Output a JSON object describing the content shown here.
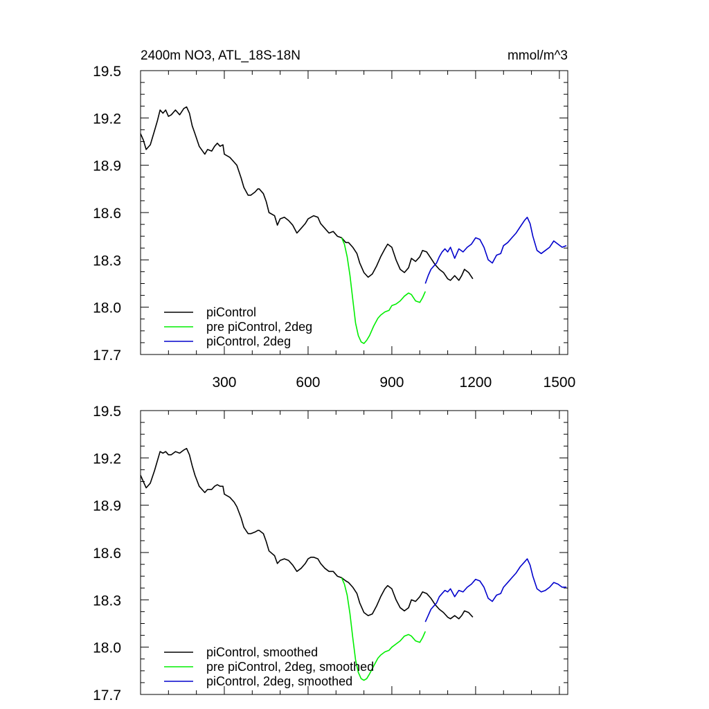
{
  "chart_data": [
    {
      "type": "line",
      "title_left": "2400m NO3, ATL_18S-18N",
      "title_right": "mmol/m^3",
      "xlabel": "",
      "ylabel": "",
      "xlim": [
        0,
        1530
      ],
      "ylim": [
        17.7,
        19.5
      ],
      "xticks": [
        300,
        600,
        900,
        1200,
        1500
      ],
      "xtick_labels": [
        "300",
        "600",
        "900",
        "1200",
        "1500"
      ],
      "yticks": [
        17.7,
        18.0,
        18.3,
        18.6,
        18.9,
        19.2,
        19.5
      ],
      "ytick_labels": [
        "17.7",
        "18.0",
        "18.3",
        "18.6",
        "18.9",
        "19.2",
        "19.5"
      ],
      "legend_position": "bottom-left",
      "series": [
        {
          "name": "piControl",
          "color": "#000000",
          "x": [
            0,
            10,
            20,
            35,
            50,
            60,
            70,
            80,
            90,
            100,
            110,
            125,
            140,
            155,
            165,
            175,
            185,
            195,
            210,
            230,
            240,
            255,
            265,
            275,
            285,
            295,
            300,
            320,
            335,
            345,
            360,
            370,
            385,
            395,
            410,
            420,
            425,
            440,
            450,
            460,
            480,
            490,
            500,
            515,
            530,
            545,
            560,
            575,
            590,
            600,
            610,
            620,
            635,
            645,
            660,
            675,
            690,
            705,
            720,
            735,
            745,
            760,
            775,
            785,
            800,
            815,
            830,
            845,
            860,
            875,
            885,
            900,
            915,
            930,
            945,
            960,
            970,
            985,
            1000,
            1010,
            1025,
            1040,
            1055,
            1070,
            1085,
            1100,
            1110,
            1125,
            1140,
            1150,
            1160,
            1175,
            1190
          ],
          "values": [
            19.1,
            19.06,
            19.0,
            19.03,
            19.12,
            19.18,
            19.25,
            19.23,
            19.25,
            19.21,
            19.22,
            19.25,
            19.22,
            19.26,
            19.27,
            19.23,
            19.15,
            19.1,
            19.02,
            18.97,
            19.0,
            18.99,
            19.02,
            19.04,
            19.02,
            19.03,
            18.97,
            18.95,
            18.92,
            18.9,
            18.82,
            18.76,
            18.71,
            18.71,
            18.73,
            18.75,
            18.75,
            18.72,
            18.67,
            18.6,
            18.58,
            18.52,
            18.56,
            18.57,
            18.55,
            18.52,
            18.47,
            18.5,
            18.53,
            18.56,
            18.57,
            18.58,
            18.57,
            18.53,
            18.5,
            18.47,
            18.48,
            18.45,
            18.44,
            18.41,
            18.41,
            18.38,
            18.34,
            18.28,
            18.22,
            18.19,
            18.21,
            18.26,
            18.32,
            18.37,
            18.4,
            18.38,
            18.3,
            18.24,
            18.22,
            18.25,
            18.31,
            18.29,
            18.32,
            18.36,
            18.35,
            18.31,
            18.27,
            18.24,
            18.22,
            18.18,
            18.17,
            18.2,
            18.17,
            18.2,
            18.24,
            18.22,
            18.18
          ]
        },
        {
          "name": "pre piControl, 2deg",
          "color": "#00ee00",
          "x": [
            720,
            730,
            740,
            750,
            760,
            770,
            780,
            790,
            800,
            810,
            820,
            835,
            850,
            860,
            875,
            890,
            900,
            915,
            930,
            945,
            960,
            970,
            985,
            1000,
            1010,
            1020
          ],
          "values": [
            18.44,
            18.4,
            18.32,
            18.2,
            18.05,
            17.9,
            17.82,
            17.78,
            17.77,
            17.79,
            17.82,
            17.88,
            17.93,
            17.95,
            17.97,
            17.98,
            18.01,
            18.02,
            18.04,
            18.07,
            18.09,
            18.08,
            18.04,
            18.03,
            18.06,
            18.1
          ]
        },
        {
          "name": "piControl, 2deg",
          "color": "#0000cc",
          "x": [
            1020,
            1030,
            1040,
            1050,
            1060,
            1070,
            1080,
            1090,
            1100,
            1110,
            1125,
            1140,
            1155,
            1170,
            1185,
            1200,
            1215,
            1230,
            1245,
            1260,
            1275,
            1290,
            1300,
            1315,
            1330,
            1345,
            1360,
            1375,
            1385,
            1395,
            1405,
            1420,
            1435,
            1450,
            1465,
            1480,
            1495,
            1510,
            1525
          ],
          "values": [
            18.15,
            18.2,
            18.24,
            18.26,
            18.28,
            18.32,
            18.35,
            18.37,
            18.35,
            18.38,
            18.31,
            18.37,
            18.35,
            18.38,
            18.4,
            18.44,
            18.43,
            18.38,
            18.3,
            18.28,
            18.33,
            18.34,
            18.39,
            18.41,
            18.44,
            18.47,
            18.51,
            18.55,
            18.57,
            18.53,
            18.45,
            18.36,
            18.34,
            18.36,
            18.38,
            18.42,
            18.4,
            18.38,
            18.39
          ]
        }
      ]
    },
    {
      "type": "line",
      "title_left": "",
      "title_right": "",
      "xlabel": "",
      "ylabel": "",
      "xlim": [
        0,
        1530
      ],
      "ylim": [
        17.7,
        19.5
      ],
      "xticks": [
        300,
        600,
        900,
        1200,
        1500
      ],
      "xtick_labels": [],
      "yticks": [
        17.7,
        18.0,
        18.3,
        18.6,
        18.9,
        19.2,
        19.5
      ],
      "ytick_labels": [
        "17.7",
        "18.0",
        "18.3",
        "18.6",
        "18.9",
        "19.2",
        "19.5"
      ],
      "legend_position": "bottom-left",
      "series": [
        {
          "name": "piControl, smoothed",
          "color": "#000000",
          "x": [
            0,
            10,
            20,
            35,
            50,
            60,
            70,
            80,
            90,
            100,
            110,
            125,
            140,
            155,
            165,
            175,
            185,
            195,
            210,
            230,
            240,
            255,
            265,
            275,
            285,
            295,
            300,
            320,
            335,
            345,
            360,
            370,
            385,
            395,
            410,
            420,
            425,
            440,
            450,
            460,
            480,
            490,
            500,
            515,
            530,
            545,
            560,
            575,
            590,
            600,
            610,
            620,
            635,
            645,
            660,
            675,
            690,
            705,
            720,
            735,
            745,
            760,
            775,
            785,
            800,
            815,
            830,
            845,
            860,
            875,
            885,
            900,
            915,
            930,
            945,
            960,
            970,
            985,
            1000,
            1010,
            1025,
            1040,
            1055,
            1070,
            1085,
            1100,
            1110,
            1125,
            1140,
            1150,
            1160,
            1175,
            1190
          ],
          "values": [
            19.09,
            19.05,
            19.01,
            19.04,
            19.12,
            19.18,
            19.24,
            19.23,
            19.24,
            19.22,
            19.22,
            19.24,
            19.23,
            19.25,
            19.26,
            19.22,
            19.15,
            19.09,
            19.02,
            18.98,
            19.0,
            19.0,
            19.02,
            19.03,
            19.02,
            19.02,
            18.97,
            18.95,
            18.92,
            18.89,
            18.82,
            18.76,
            18.72,
            18.72,
            18.73,
            18.74,
            18.74,
            18.72,
            18.67,
            18.61,
            18.58,
            18.53,
            18.55,
            18.56,
            18.55,
            18.52,
            18.48,
            18.5,
            18.53,
            18.56,
            18.57,
            18.57,
            18.56,
            18.53,
            18.5,
            18.48,
            18.48,
            18.45,
            18.44,
            18.42,
            18.41,
            18.38,
            18.34,
            18.28,
            18.22,
            18.2,
            18.21,
            18.26,
            18.32,
            18.37,
            18.39,
            18.37,
            18.3,
            18.25,
            18.23,
            18.25,
            18.3,
            18.29,
            18.32,
            18.35,
            18.34,
            18.31,
            18.27,
            18.24,
            18.22,
            18.19,
            18.18,
            18.2,
            18.18,
            18.2,
            18.23,
            18.22,
            18.19
          ]
        },
        {
          "name": "pre piControl, 2deg, smoothed",
          "color": "#00ee00",
          "x": [
            720,
            730,
            740,
            750,
            760,
            770,
            780,
            790,
            800,
            810,
            820,
            835,
            850,
            860,
            875,
            890,
            900,
            915,
            930,
            945,
            960,
            970,
            985,
            1000,
            1010,
            1020
          ],
          "values": [
            18.44,
            18.4,
            18.33,
            18.21,
            18.06,
            17.92,
            17.84,
            17.8,
            17.79,
            17.8,
            17.83,
            17.88,
            17.93,
            17.95,
            17.97,
            17.98,
            18.0,
            18.02,
            18.04,
            18.07,
            18.08,
            18.07,
            18.04,
            18.03,
            18.06,
            18.1
          ]
        },
        {
          "name": "piControl, 2deg, smoothed",
          "color": "#0000cc",
          "x": [
            1020,
            1030,
            1040,
            1050,
            1060,
            1070,
            1080,
            1090,
            1100,
            1110,
            1125,
            1140,
            1155,
            1170,
            1185,
            1200,
            1215,
            1230,
            1245,
            1260,
            1275,
            1290,
            1300,
            1315,
            1330,
            1345,
            1360,
            1375,
            1385,
            1395,
            1405,
            1420,
            1435,
            1450,
            1465,
            1480,
            1495,
            1510,
            1525
          ],
          "values": [
            18.16,
            18.2,
            18.24,
            18.26,
            18.28,
            18.32,
            18.34,
            18.36,
            18.35,
            18.37,
            18.32,
            18.36,
            18.35,
            18.38,
            18.4,
            18.43,
            18.42,
            18.38,
            18.31,
            18.29,
            18.33,
            18.34,
            18.38,
            18.41,
            18.44,
            18.47,
            18.51,
            18.54,
            18.56,
            18.52,
            18.45,
            18.37,
            18.35,
            18.36,
            18.38,
            18.41,
            18.4,
            18.38,
            18.38
          ]
        }
      ]
    }
  ]
}
